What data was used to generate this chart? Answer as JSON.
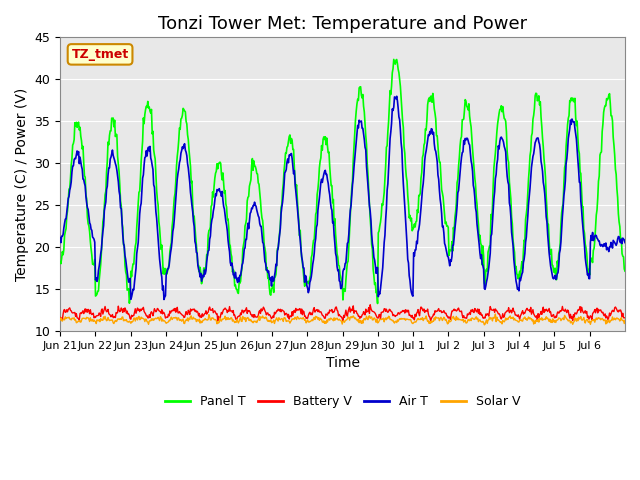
{
  "title": "Tonzi Tower Met: Temperature and Power",
  "xlabel": "Time",
  "ylabel": "Temperature (C) / Power (V)",
  "annotation": "TZ_tmet",
  "ylim": [
    10,
    45
  ],
  "n_days": 16,
  "x_tick_labels": [
    "Jun 21",
    "Jun 22",
    "Jun 23",
    "Jun 24",
    "Jun 25",
    "Jun 26",
    "Jun 27",
    "Jun 28",
    "Jun 29",
    "Jun 30",
    "Jul 1",
    "Jul 2",
    "Jul 3",
    "Jul 4",
    "Jul 5",
    "Jul 6"
  ],
  "colors": {
    "panel_t": "#00FF00",
    "battery_v": "#FF0000",
    "air_t": "#0000CC",
    "solar_v": "#FFA500"
  },
  "legend_labels": [
    "Panel T",
    "Battery V",
    "Air T",
    "Solar V"
  ],
  "background_color": "#FFFFFF",
  "plot_bg_color": "#E8E8E8",
  "grid_color": "#FFFFFF",
  "title_fontsize": 13,
  "axis_fontsize": 10,
  "tick_fontsize": 9,
  "panel_t_min": [
    18,
    14,
    17,
    17,
    16,
    15,
    15,
    16,
    14,
    22,
    22,
    19,
    16,
    17,
    17,
    18
  ],
  "panel_t_max": [
    35,
    35,
    37,
    36,
    30,
    30,
    33,
    33,
    39,
    42,
    38,
    37,
    37,
    38,
    38,
    38
  ],
  "air_t_min": [
    21,
    16,
    14,
    17,
    16,
    16,
    16,
    15,
    17,
    14,
    19,
    18,
    15,
    16,
    16,
    21
  ],
  "air_t_max": [
    31,
    31,
    32,
    32,
    27,
    25,
    31,
    29,
    35,
    38,
    34,
    33,
    33,
    33,
    35,
    20
  ]
}
